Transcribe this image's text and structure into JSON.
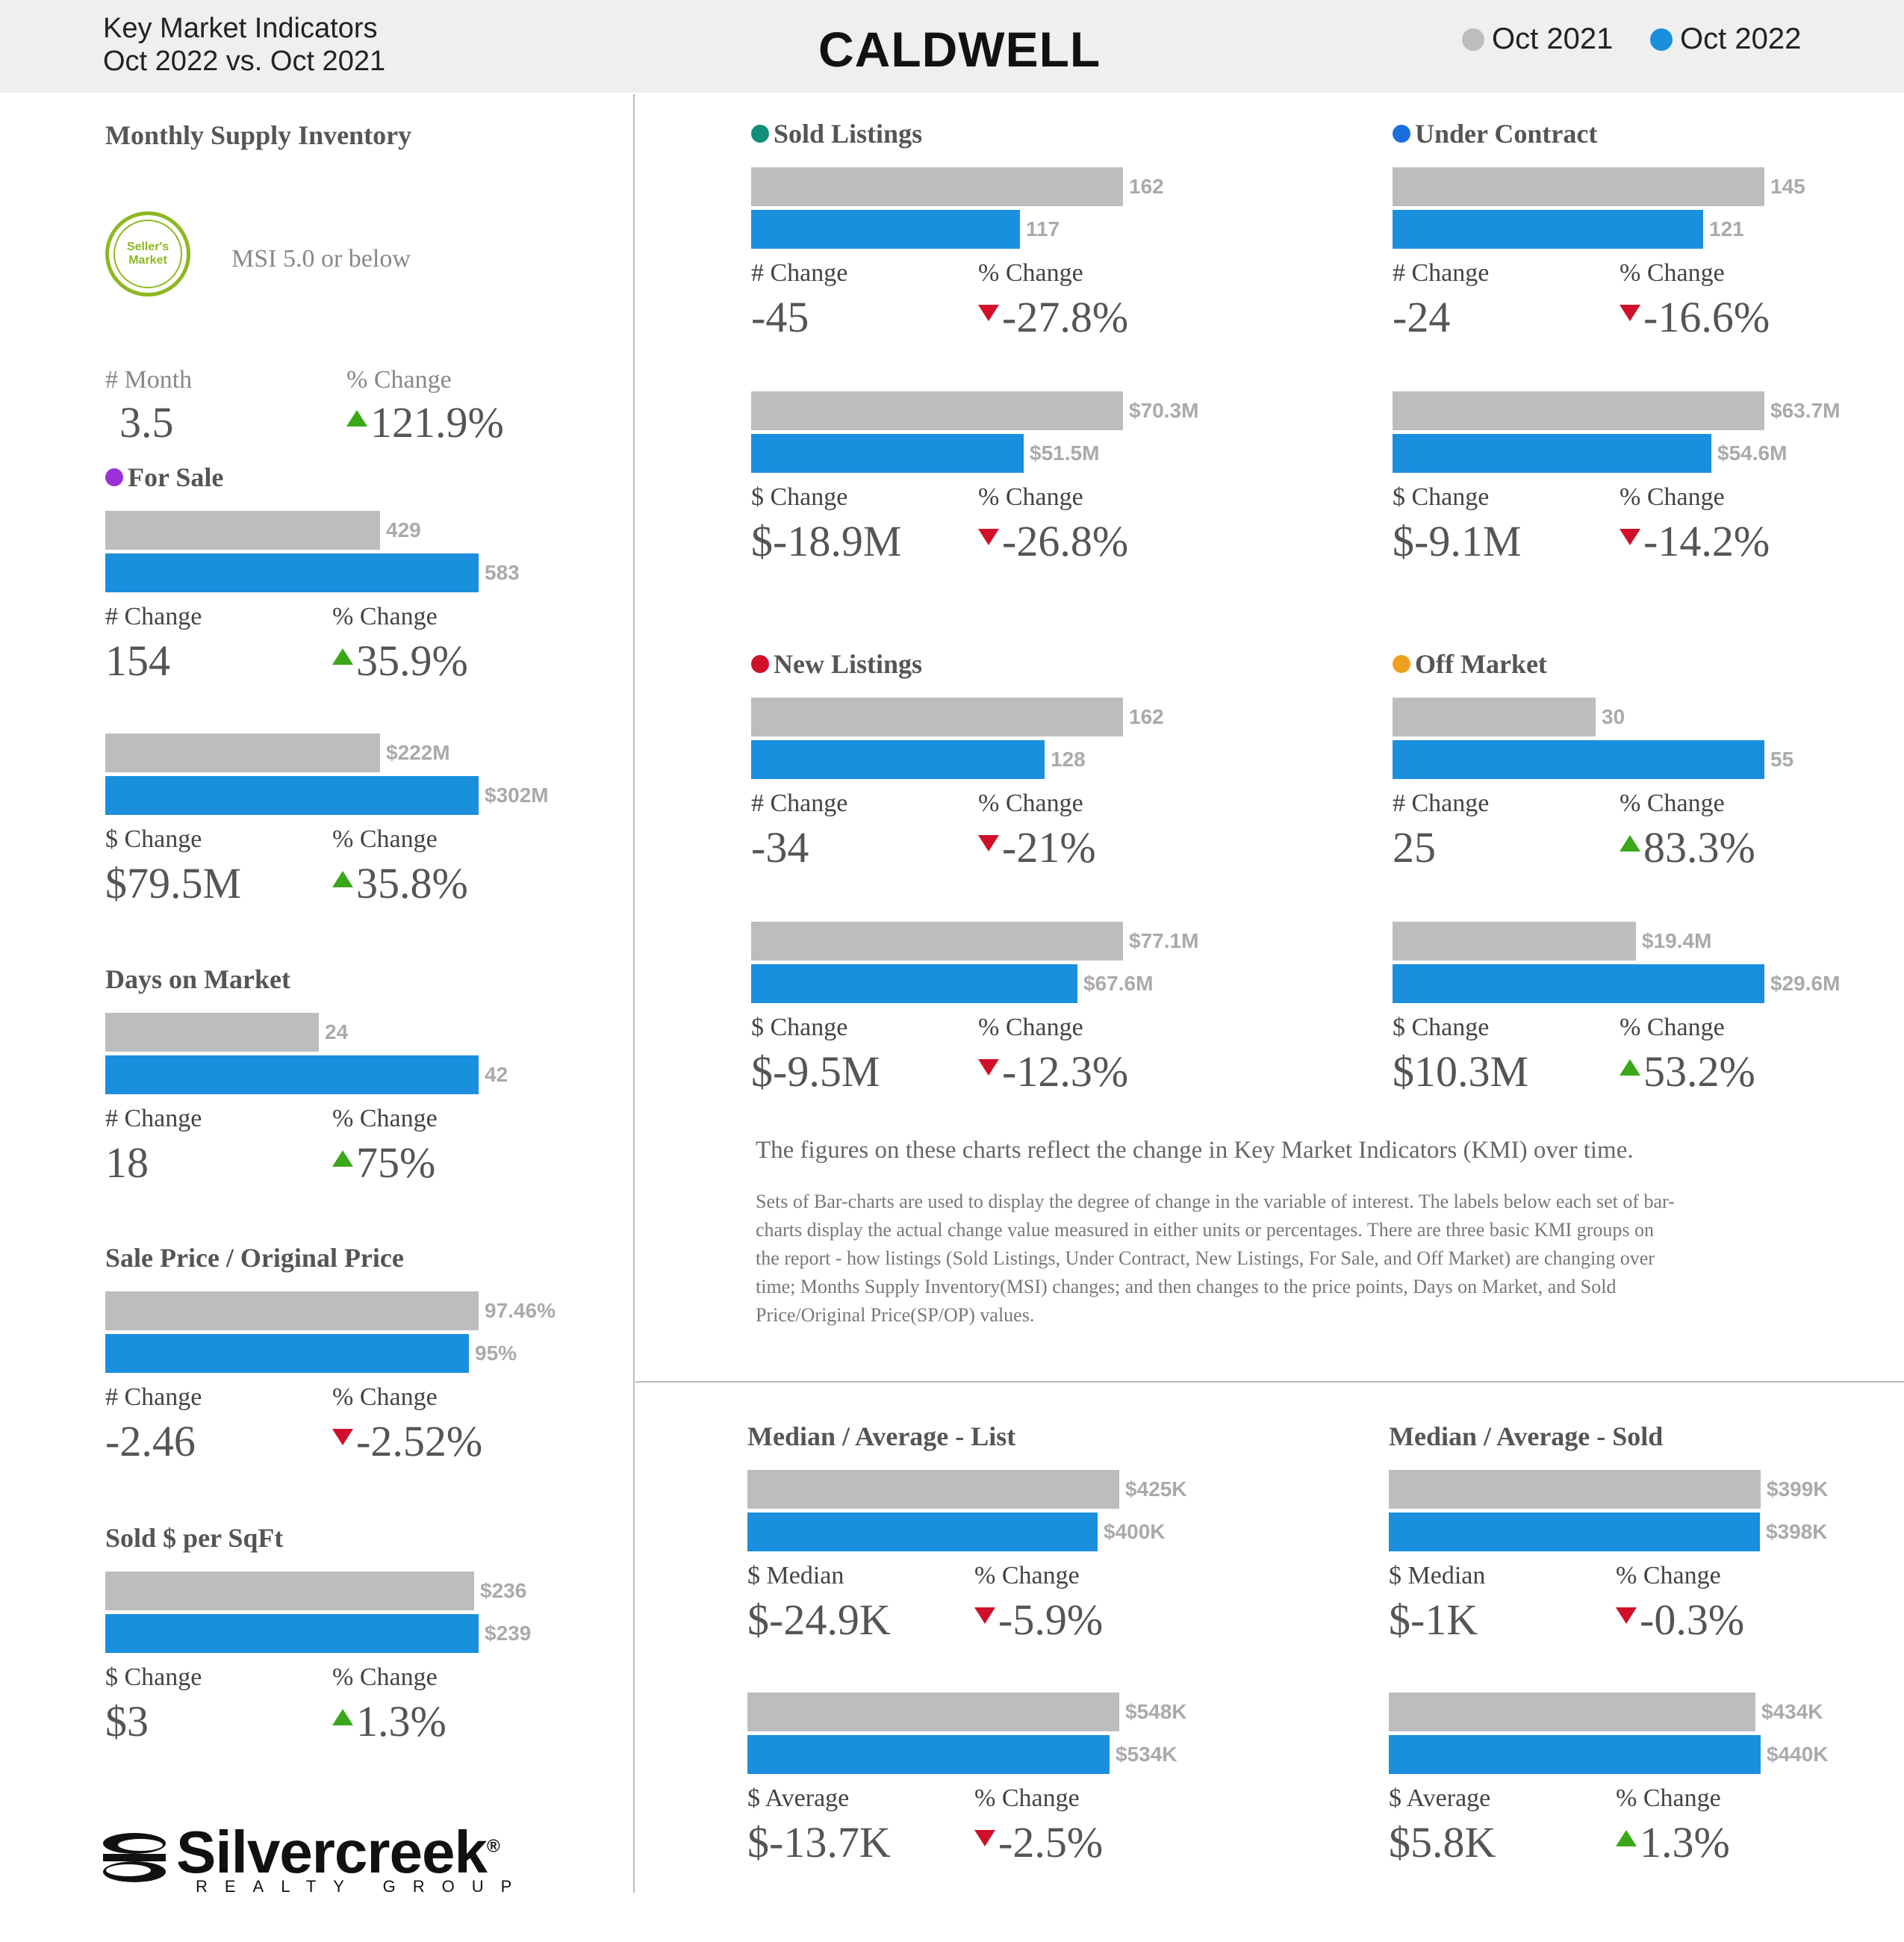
{
  "header": {
    "subtitle_line1": "Key Market Indicators",
    "subtitle_line2": "Oct 2022 vs. Oct 2021",
    "title": "CALDWELL",
    "legend": [
      {
        "label": "Oct 2021",
        "color": "#bdbdbd"
      },
      {
        "label": "Oct 2022",
        "color": "#1a8fdd"
      }
    ]
  },
  "msi": {
    "title": "Monthly Supply Inventory",
    "badge_line1": "Seller's",
    "badge_line2": "Market",
    "badge_caption": "MSI 5.0 or below",
    "label1": "# Month",
    "value1": "3.5",
    "label2": "% Change",
    "value2": "121.9%",
    "direction": "up"
  },
  "notes": {
    "line1": "The figures on these charts reflect the change in Key Market Indicators (KMI) over time.",
    "para": [
      "Sets of Bar-charts are used to display the degree of change in the variable of interest. The labels below each set of bar-",
      "charts display the actual change value measured in either units or percentages. There are three basic KMI groups on",
      "the report - how listings (Sold Listings, Under Contract, New Listings, For Sale, and Off Market) are changing over",
      "time; Months Supply Inventory(MSI) changes; and then changes to the price points, Days on Market, and Sold",
      "Price/Original Price(SP/OP) values."
    ]
  },
  "logo": {
    "word": "Silvercreek",
    "registered": "®",
    "sub": "REALTY GROUP"
  },
  "chart_data": [
    {
      "type": "bar",
      "title": "For Sale",
      "title_dot": "#9b30d9",
      "categories": [
        "Oct 2021",
        "Oct 2022"
      ],
      "values": [
        429,
        583
      ],
      "labels": [
        "429",
        "583"
      ],
      "change_label": "# Change",
      "change_value": "154",
      "pct_label": "% Change",
      "pct_value": "35.9%",
      "direction": "up"
    },
    {
      "type": "bar",
      "title": "",
      "categories": [
        "Oct 2021",
        "Oct 2022"
      ],
      "values": [
        222,
        302
      ],
      "labels": [
        "$222M",
        "$302M"
      ],
      "change_label": "$ Change",
      "change_value": "$79.5M",
      "pct_label": "% Change",
      "pct_value": "35.8%",
      "direction": "up"
    },
    {
      "type": "bar",
      "title": "Days on Market",
      "categories": [
        "Oct 2021",
        "Oct 2022"
      ],
      "values": [
        24,
        42
      ],
      "labels": [
        "24",
        "42"
      ],
      "change_label": "# Change",
      "change_value": "18",
      "pct_label": "% Change",
      "pct_value": "75%",
      "direction": "up"
    },
    {
      "type": "bar",
      "title": "Sale Price / Original Price",
      "categories": [
        "Oct 2021",
        "Oct 2022"
      ],
      "values": [
        97.46,
        95
      ],
      "labels": [
        "97.46%",
        "95%"
      ],
      "change_label": "# Change",
      "change_value": "-2.46",
      "pct_label": "% Change",
      "pct_value": "-2.52%",
      "direction": "down"
    },
    {
      "type": "bar",
      "title": "Sold $ per SqFt",
      "categories": [
        "Oct 2021",
        "Oct 2022"
      ],
      "values": [
        236,
        239
      ],
      "labels": [
        "$236",
        "$239"
      ],
      "change_label": "$ Change",
      "change_value": "$3",
      "pct_label": "% Change",
      "pct_value": "1.3%",
      "direction": "up"
    },
    {
      "type": "bar",
      "title": "Sold Listings",
      "title_dot": "#0f8f7a",
      "categories": [
        "Oct 2021",
        "Oct 2022"
      ],
      "values": [
        162,
        117
      ],
      "labels": [
        "162",
        "117"
      ],
      "change_label": "# Change",
      "change_value": "-45",
      "pct_label": "% Change",
      "pct_value": "-27.8%",
      "direction": "down"
    },
    {
      "type": "bar",
      "title": "",
      "categories": [
        "Oct 2021",
        "Oct 2022"
      ],
      "values": [
        70.3,
        51.5
      ],
      "labels": [
        "$70.3M",
        "$51.5M"
      ],
      "change_label": "$ Change",
      "change_value": "$-18.9M",
      "pct_label": "% Change",
      "pct_value": "-26.8%",
      "direction": "down"
    },
    {
      "type": "bar",
      "title": "Under Contract",
      "title_dot": "#1a6fe0",
      "categories": [
        "Oct 2021",
        "Oct 2022"
      ],
      "values": [
        145,
        121
      ],
      "labels": [
        "145",
        "121"
      ],
      "change_label": "# Change",
      "change_value": "-24",
      "pct_label": "% Change",
      "pct_value": "-16.6%",
      "direction": "down"
    },
    {
      "type": "bar",
      "title": "",
      "categories": [
        "Oct 2021",
        "Oct 2022"
      ],
      "values": [
        63.7,
        54.6
      ],
      "labels": [
        "$63.7M",
        "$54.6M"
      ],
      "change_label": "$ Change",
      "change_value": "$-9.1M",
      "pct_label": "% Change",
      "pct_value": "-14.2%",
      "direction": "down"
    },
    {
      "type": "bar",
      "title": "New Listings",
      "title_dot": "#d0102a",
      "categories": [
        "Oct 2021",
        "Oct 2022"
      ],
      "values": [
        162,
        128
      ],
      "labels": [
        "162",
        "128"
      ],
      "change_label": "# Change",
      "change_value": "-34",
      "pct_label": "% Change",
      "pct_value": "-21%",
      "direction": "down"
    },
    {
      "type": "bar",
      "title": "",
      "categories": [
        "Oct 2021",
        "Oct 2022"
      ],
      "values": [
        77.1,
        67.6
      ],
      "labels": [
        "$77.1M",
        "$67.6M"
      ],
      "change_label": "$ Change",
      "change_value": "$-9.5M",
      "pct_label": "% Change",
      "pct_value": "-12.3%",
      "direction": "down"
    },
    {
      "type": "bar",
      "title": "Off Market",
      "title_dot": "#f0a020",
      "categories": [
        "Oct 2021",
        "Oct 2022"
      ],
      "values": [
        30,
        55
      ],
      "labels": [
        "30",
        "55"
      ],
      "change_label": "# Change",
      "change_value": "25",
      "pct_label": "% Change",
      "pct_value": "83.3%",
      "direction": "up"
    },
    {
      "type": "bar",
      "title": "",
      "categories": [
        "Oct 2021",
        "Oct 2022"
      ],
      "values": [
        19.4,
        29.6
      ],
      "labels": [
        "$19.4M",
        "$29.6M"
      ],
      "change_label": "$ Change",
      "change_value": "$10.3M",
      "pct_label": "% Change",
      "pct_value": "53.2%",
      "direction": "up"
    },
    {
      "type": "bar",
      "title": "Median / Average - List",
      "categories": [
        "Oct 2021",
        "Oct 2022"
      ],
      "values": [
        425,
        400
      ],
      "labels": [
        "$425K",
        "$400K"
      ],
      "change_label": "$ Median",
      "change_value": "$-24.9K",
      "pct_label": "% Change",
      "pct_value": "-5.9%",
      "direction": "down"
    },
    {
      "type": "bar",
      "title": "",
      "categories": [
        "Oct 2021",
        "Oct 2022"
      ],
      "values": [
        548,
        534
      ],
      "labels": [
        "$548K",
        "$534K"
      ],
      "change_label": "$ Average",
      "change_value": "$-13.7K",
      "pct_label": "% Change",
      "pct_value": "-2.5%",
      "direction": "down"
    },
    {
      "type": "bar",
      "title": "Median / Average - Sold",
      "categories": [
        "Oct 2021",
        "Oct 2022"
      ],
      "values": [
        399,
        398
      ],
      "labels": [
        "$399K",
        "$398K"
      ],
      "change_label": "$ Median",
      "change_value": "$-1K",
      "pct_label": "% Change",
      "pct_value": "-0.3%",
      "direction": "down"
    },
    {
      "type": "bar",
      "title": "",
      "categories": [
        "Oct 2021",
        "Oct 2022"
      ],
      "values": [
        434,
        440
      ],
      "labels": [
        "$434K",
        "$440K"
      ],
      "change_label": "$ Average",
      "change_value": "$5.8K",
      "pct_label": "% Change",
      "pct_value": "1.3%",
      "direction": "up"
    }
  ]
}
